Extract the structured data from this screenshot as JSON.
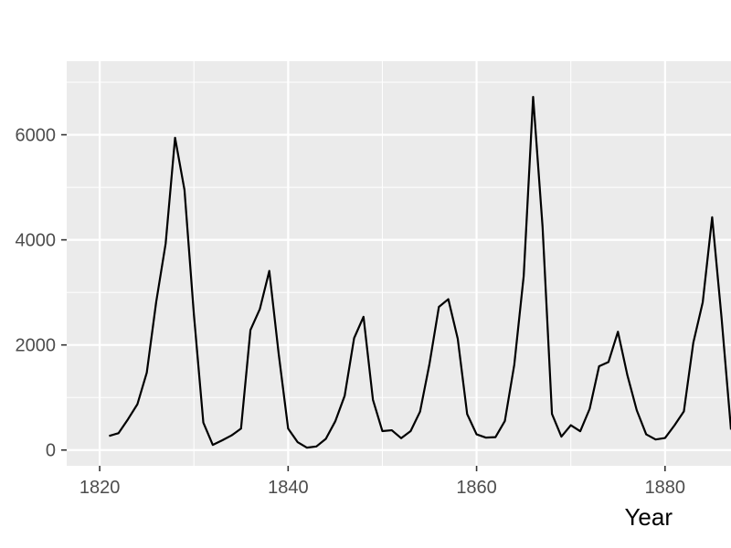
{
  "chart_data": {
    "type": "line",
    "title": "",
    "xlabel": "Year",
    "ylabel": "",
    "xlim": [
      1816.5,
      1887
    ],
    "ylim": [
      -300,
      7400
    ],
    "x_ticks": [
      1820,
      1840,
      1860,
      1880
    ],
    "y_ticks": [
      0,
      2000,
      4000,
      6000
    ],
    "x_tick_labels": [
      "1820",
      "1840",
      "1860",
      "1880"
    ],
    "y_tick_labels": [
      "0",
      "2000",
      "4000",
      "6000"
    ],
    "grid": true,
    "legend": "none",
    "colors": {
      "panel": "#ebebeb",
      "grid": "#ffffff",
      "line": "#000000",
      "tick_text": "#4d4d4d"
    },
    "series": [
      {
        "x": [
          1821,
          1822,
          1823,
          1824,
          1825,
          1826,
          1827,
          1828,
          1829,
          1830,
          1831,
          1832,
          1833,
          1834,
          1835,
          1836,
          1837,
          1838,
          1839,
          1840,
          1841,
          1842,
          1843,
          1844,
          1845,
          1846,
          1847,
          1848,
          1849,
          1850,
          1851,
          1852,
          1853,
          1854,
          1855,
          1856,
          1857,
          1858,
          1859,
          1860,
          1861,
          1862,
          1863,
          1864,
          1865,
          1866,
          1867,
          1868,
          1869,
          1870,
          1871,
          1872,
          1873,
          1874,
          1875,
          1876,
          1877,
          1878,
          1879,
          1880,
          1881,
          1882,
          1883,
          1884,
          1885,
          1886,
          1887
        ],
        "values": [
          269,
          321,
          585,
          871,
          1475,
          2821,
          3928,
          5943,
          4950,
          2577,
          523,
          98,
          184,
          279,
          409,
          2285,
          2685,
          3409,
          1824,
          409,
          151,
          45,
          68,
          213,
          546,
          1033,
          2129,
          2536,
          957,
          361,
          377,
          225,
          360,
          731,
          1638,
          2725,
          2871,
          2119,
          684,
          299,
          236,
          245,
          552,
          1623,
          3311,
          6721,
          4254,
          687,
          255,
          473,
          358,
          784,
          1594,
          1676,
          2251,
          1426,
          756,
          299,
          201,
          229,
          469,
          736,
          2042,
          2811,
          4431,
          2511,
          389
        ]
      }
    ]
  }
}
